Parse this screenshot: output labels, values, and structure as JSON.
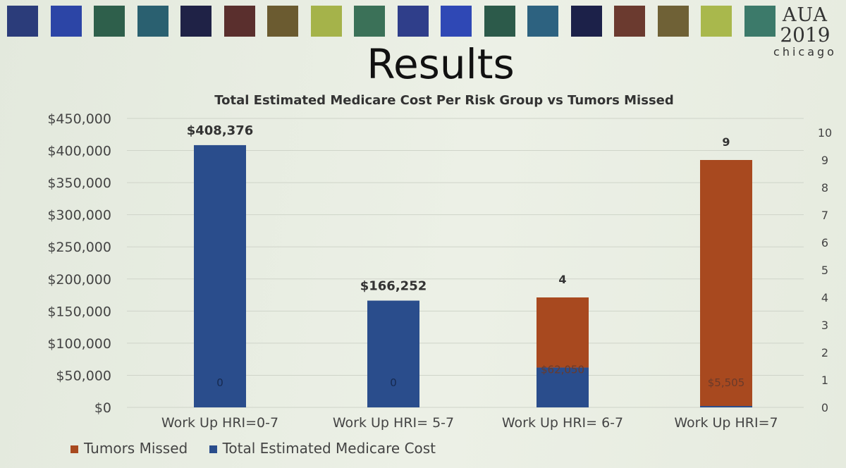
{
  "slide": {
    "heading": "Results",
    "logo": {
      "line1": "AUA",
      "line2": "2019",
      "line3": "chicago"
    },
    "palette": [
      "#2b3c7a",
      "#2c45a6",
      "#2e5f4b",
      "#2a6070",
      "#1f2246",
      "#5a2f2d",
      "#6b5b30",
      "#a5b34a",
      "#3b7158",
      "#2f3e8a",
      "#2f48b5",
      "#2c5a4a",
      "#2d6280",
      "#1c2149",
      "#6b3a2f",
      "#6f6136",
      "#a9b84c",
      "#3c7a6a"
    ]
  },
  "chart_data": {
    "type": "bar",
    "title": "Total Estimated Medicare Cost Per Risk Group vs Tumors Missed",
    "categories": [
      "Work Up HRI=0-7",
      "Work Up HRI= 5-7",
      "Work Up HRI= 6-7",
      "Work Up HRI=7"
    ],
    "series": [
      {
        "name": "Tumors Missed",
        "axis": "right",
        "color": "#a8491f",
        "values": [
          0,
          0,
          4,
          9
        ],
        "labels": [
          "0",
          "0",
          "4",
          "9"
        ]
      },
      {
        "name": "Total Estimated Medicare Cost",
        "axis": "left",
        "color": "#2a4d8c",
        "values": [
          408376,
          166252,
          62050,
          5505
        ],
        "labels": [
          "$408,376",
          "$166,252",
          "$62,050",
          "$5,505"
        ]
      }
    ],
    "left_axis": {
      "ylim": [
        0,
        450000
      ],
      "ticks": [
        0,
        50000,
        100000,
        150000,
        200000,
        250000,
        300000,
        350000,
        400000,
        450000
      ],
      "tick_labels": [
        "$0",
        "$50,000",
        "$100,000",
        "$150,000",
        "$200,000",
        "$250,000",
        "$300,000",
        "$350,000",
        "$400,000",
        "$450,000"
      ]
    },
    "right_axis": {
      "ylim": [
        0,
        10
      ],
      "ticks": [
        0,
        1,
        2,
        3,
        4,
        5,
        6,
        7,
        8,
        9,
        10
      ],
      "tick_labels": [
        "0",
        "1",
        "2",
        "3",
        "4",
        "5",
        "6",
        "7",
        "8",
        "9",
        "10"
      ]
    },
    "grid": true,
    "legend_position": "bottom-left"
  }
}
